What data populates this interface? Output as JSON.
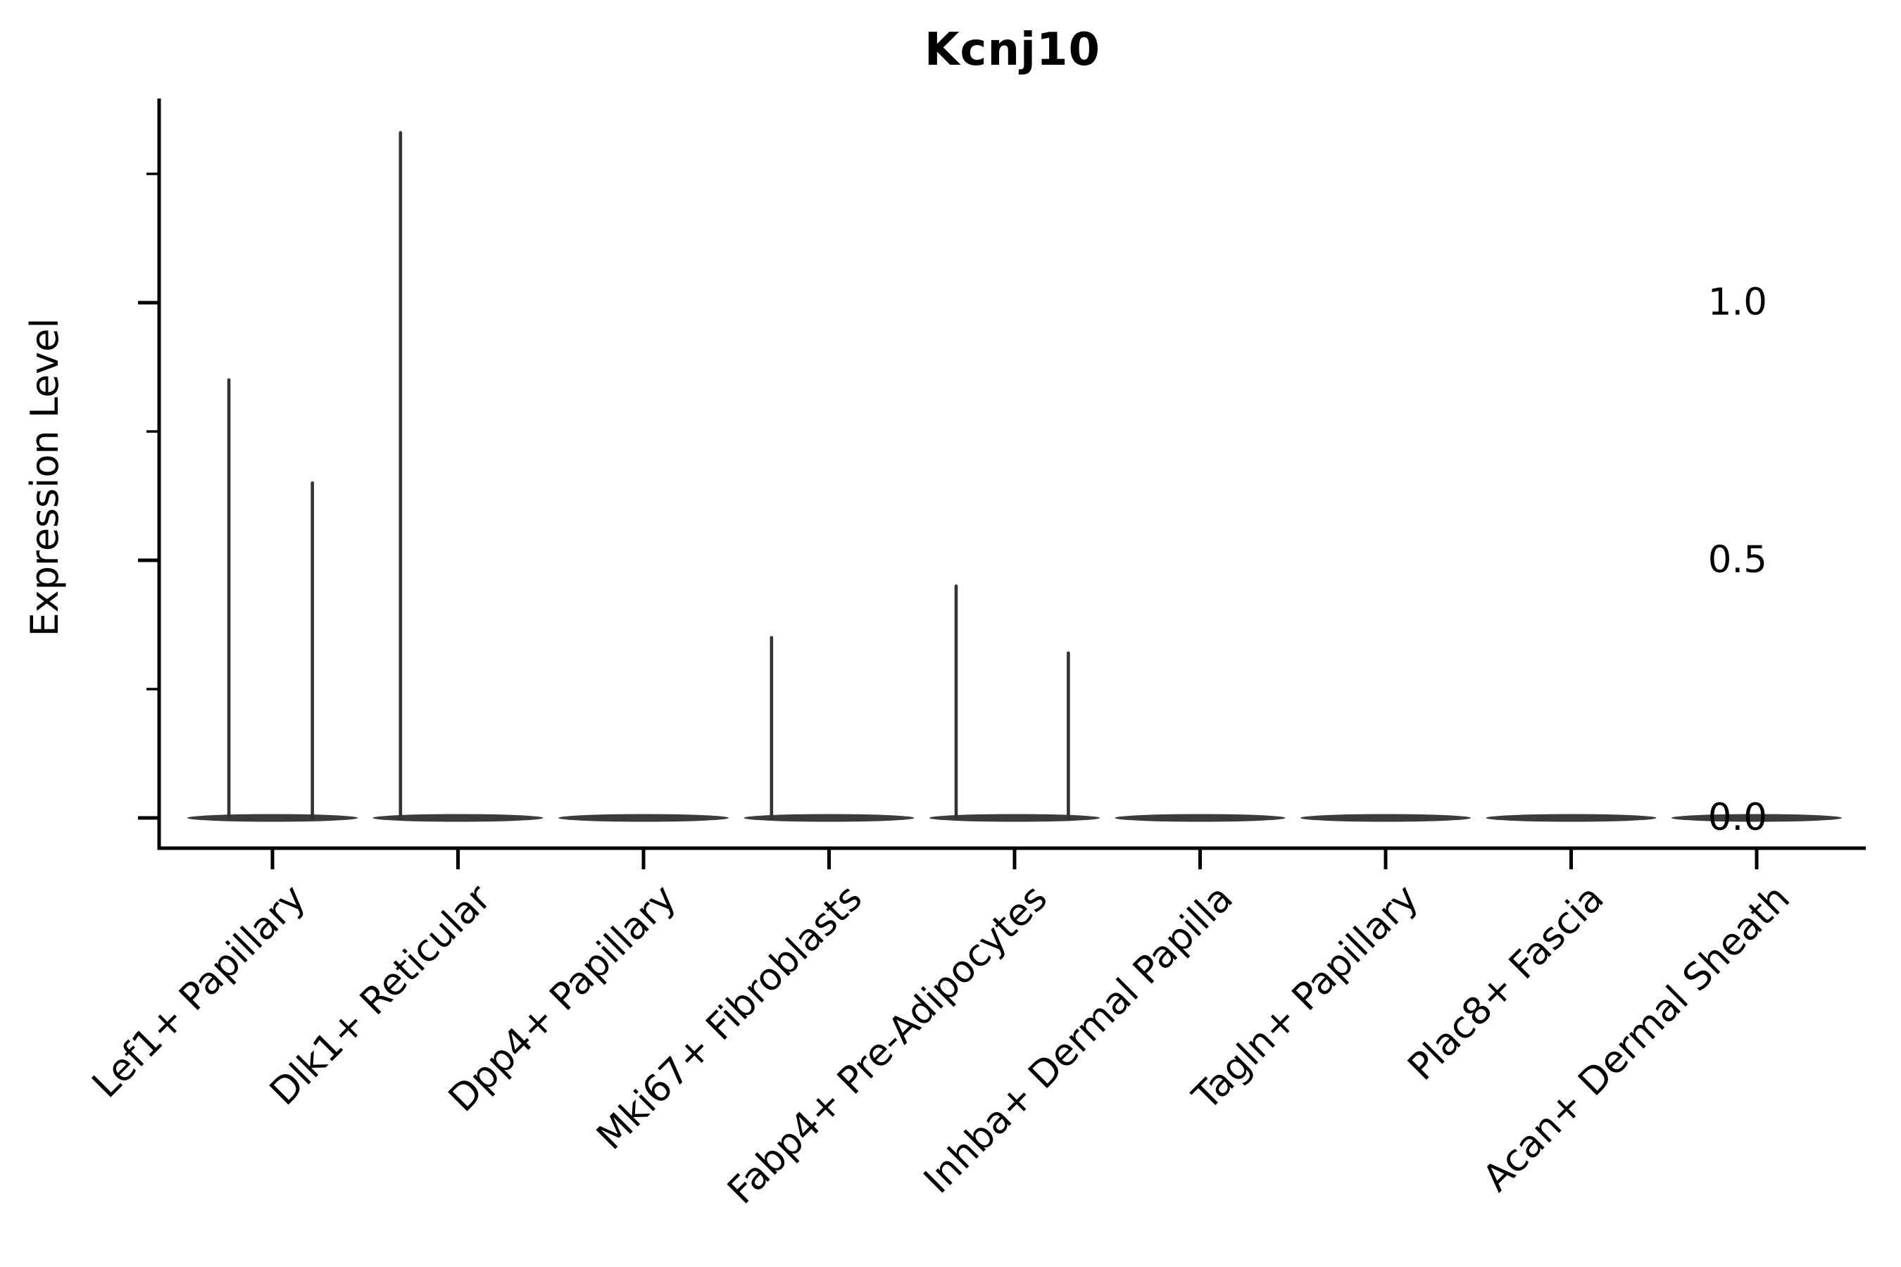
{
  "figure": {
    "title": "Kcnj10"
  },
  "chart_data": {
    "type": "violin",
    "title": "Kcnj10",
    "xlabel": "",
    "ylabel": "Expression Level",
    "ylim": [
      0,
      1.4
    ],
    "grid": false,
    "legend_position": "none",
    "axis_color": "#000000",
    "violin_color": "#3b3b3b",
    "spike_color": "#333333",
    "y_major_ticks": [
      {
        "value": 0.0,
        "label": "0.0"
      },
      {
        "value": 0.5,
        "label": "0.5"
      },
      {
        "value": 1.0,
        "label": "1.0"
      }
    ],
    "y_minor_tick_values": [
      0.25,
      0.75,
      1.25
    ],
    "categories": [
      {
        "label": "Lef1+ Papillary",
        "baseline_value": 0,
        "spikes": [
          {
            "value": 0.85,
            "dx": -0.235
          },
          {
            "value": 0.65,
            "dx": 0.215
          }
        ]
      },
      {
        "label": "Dlk1+ Reticular",
        "baseline_value": 0,
        "spikes": [
          {
            "value": 1.33,
            "dx": -0.31
          }
        ]
      },
      {
        "label": "Dpp4+ Papillary",
        "baseline_value": 0,
        "spikes": []
      },
      {
        "label": "Mki67+ Fibroblasts",
        "baseline_value": 0,
        "spikes": [
          {
            "value": 0.35,
            "dx": -0.31
          }
        ]
      },
      {
        "label": "Fabp4+ Pre-Adipocytes",
        "baseline_value": 0,
        "spikes": [
          {
            "value": 0.45,
            "dx": -0.315
          },
          {
            "value": 0.32,
            "dx": 0.29
          }
        ]
      },
      {
        "label": "Inhba+ Dermal Papilla",
        "baseline_value": 0,
        "spikes": []
      },
      {
        "label": "Tagln+ Papillary",
        "baseline_value": 0,
        "spikes": []
      },
      {
        "label": "Plac8+ Fascia",
        "baseline_value": 0,
        "spikes": []
      },
      {
        "label": "Acan+ Dermal Sheath",
        "baseline_value": 0,
        "spikes": []
      }
    ]
  }
}
